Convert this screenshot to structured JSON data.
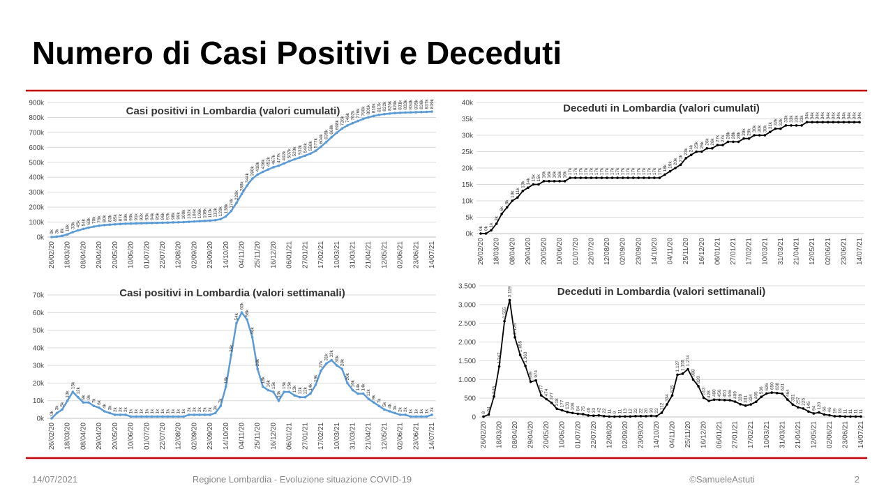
{
  "title": "Numero di Casi Positivi e Deceduti",
  "footer": {
    "date": "14/07/2021",
    "source": "Regione Lombardia - Evoluzione situazione COVID-19",
    "author": "©SamueleAstuti",
    "page": "2"
  },
  "chart_data": [
    {
      "type": "line",
      "title": "Casi positivi in Lombardia (valori cumulati)",
      "color": "#5b9bd5",
      "grid": true,
      "categories": [
        "26/02/20",
        null,
        null,
        "18/03/20",
        null,
        null,
        "08/04/20",
        null,
        null,
        "29/04/20",
        null,
        null,
        "20/05/20",
        null,
        null,
        "10/06/20",
        null,
        null,
        "01/07/20",
        null,
        null,
        "22/07/20",
        null,
        null,
        "12/08/20",
        null,
        null,
        "02/09/20",
        null,
        null,
        "23/09/20",
        null,
        null,
        "14/10/20",
        null,
        null,
        "04/11/20",
        null,
        null,
        "25/11/20",
        null,
        null,
        "16/12/20",
        null,
        null,
        "06/01/21",
        null,
        null,
        "27/01/21",
        null,
        null,
        "17/02/21",
        null,
        null,
        "10/03/21",
        null,
        null,
        "31/03/21",
        null,
        null,
        "21/04/21",
        null,
        null,
        "12/05/21",
        null,
        null,
        "02/06/21",
        null,
        null,
        "23/06/21",
        null,
        null,
        "14/07/21"
      ],
      "values": [
        0,
        3000,
        8000,
        18000,
        33000,
        45000,
        54000,
        63000,
        70000,
        76000,
        80000,
        83000,
        85000,
        87000,
        89000,
        90000,
        91000,
        92000,
        93000,
        94000,
        95000,
        96000,
        97000,
        98000,
        99000,
        100000,
        102000,
        104000,
        106000,
        108000,
        110000,
        113000,
        120000,
        138000,
        174000,
        228000,
        288000,
        344000,
        390000,
        418000,
        436000,
        452000,
        467000,
        477000,
        492000,
        507000,
        520000,
        532000,
        544000,
        558000,
        577000,
        604000,
        635000,
        668000,
        698000,
        726000,
        746000,
        762000,
        776000,
        790000,
        801000,
        810000,
        817000,
        822000,
        826000,
        829000,
        831000,
        833000,
        834000,
        835000,
        836000,
        837000,
        839000
      ],
      "value_labels": [
        "0k",
        "3k",
        "8k",
        "18k",
        "33k",
        "45k",
        "54k",
        "63k",
        "70k",
        "76k",
        "80k",
        "83k",
        "85k",
        "87k",
        "89k",
        "90k",
        "91k",
        "92k",
        "93k",
        "94k",
        "95k",
        "96k",
        "97k",
        "98k",
        "99k",
        "100k",
        "102k",
        "104k",
        "106k",
        "108k",
        "110k",
        "113k",
        "120k",
        "138k",
        "174k",
        "228k",
        "288k",
        "344k",
        "390k",
        "418k",
        "436k",
        "452k",
        "467k",
        "477k",
        "492k",
        "507k",
        "520k",
        "532k",
        "544k",
        "558k",
        "577k",
        "604k",
        "635k",
        "668k",
        "698k",
        "726k",
        "746k",
        "762k",
        "776k",
        "790k",
        "801k",
        "810k",
        "817k",
        "822k",
        "826k",
        "829k",
        "831k",
        "833k",
        "834k",
        "835k",
        "836k",
        "837k",
        "839k"
      ],
      "ylim": [
        0,
        900000
      ],
      "yticks": [
        {
          "value": 0,
          "label": "0k"
        },
        {
          "value": 100000,
          "label": "100k"
        },
        {
          "value": 200000,
          "label": "200k"
        },
        {
          "value": 300000,
          "label": "300k"
        },
        {
          "value": 400000,
          "label": "400k"
        },
        {
          "value": 500000,
          "label": "500k"
        },
        {
          "value": 600000,
          "label": "600k"
        },
        {
          "value": 700000,
          "label": "700k"
        },
        {
          "value": 800000,
          "label": "800k"
        },
        {
          "value": 900000,
          "label": "900k"
        }
      ]
    },
    {
      "type": "line",
      "title": "Deceduti in Lombardia (valori cumulati)",
      "color": "#000000",
      "grid": true,
      "categories": [
        "26/02/20",
        null,
        null,
        "18/03/20",
        null,
        null,
        "08/04/20",
        null,
        null,
        "29/04/20",
        null,
        null,
        "20/05/20",
        null,
        null,
        "10/06/20",
        null,
        null,
        "01/07/20",
        null,
        null,
        "22/07/20",
        null,
        null,
        "12/08/20",
        null,
        null,
        "02/09/20",
        null,
        null,
        "23/09/20",
        null,
        null,
        "14/10/20",
        null,
        null,
        "04/11/20",
        null,
        null,
        "25/11/20",
        null,
        null,
        "16/12/20",
        null,
        null,
        "06/01/21",
        null,
        null,
        "27/01/21",
        null,
        null,
        "17/02/21",
        null,
        null,
        "10/03/21",
        null,
        null,
        "31/03/21",
        null,
        null,
        "21/04/21",
        null,
        null,
        "12/05/21",
        null,
        null,
        "02/06/21",
        null,
        null,
        "23/06/21",
        null,
        null,
        "14/07/21"
      ],
      "values": [
        0,
        0,
        1000,
        3000,
        6000,
        8000,
        10000,
        11000,
        13000,
        14000,
        15000,
        15000,
        16000,
        16000,
        16000,
        16000,
        16000,
        17000,
        17000,
        17000,
        17000,
        17000,
        17000,
        17000,
        17000,
        17000,
        17000,
        17000,
        17000,
        17000,
        17000,
        17000,
        17000,
        17000,
        17000,
        18000,
        19000,
        20000,
        21000,
        23000,
        24000,
        25000,
        25000,
        26000,
        26000,
        27000,
        27000,
        28000,
        28000,
        28000,
        29000,
        29000,
        30000,
        30000,
        30000,
        31000,
        32000,
        32000,
        33000,
        33000,
        33000,
        33000,
        34000,
        34000,
        34000,
        34000,
        34000,
        34000,
        34000,
        34000,
        34000,
        34000,
        34000
      ],
      "value_labels": [
        "0k",
        "0k",
        "1k",
        "3k",
        "6k",
        "8k",
        "10k",
        "11k",
        "13k",
        "14k",
        "15k",
        "15k",
        "16k",
        "16k",
        "16k",
        "16k",
        "16k",
        "17k",
        "17k",
        "17k",
        "17k",
        "17k",
        "17k",
        "17k",
        "17k",
        "17k",
        "17k",
        "17k",
        "17k",
        "17k",
        "17k",
        "17k",
        "17k",
        "17k",
        "17k",
        "18k",
        "19k",
        "20k",
        "21k",
        "23k",
        "24k",
        "25k",
        "25k",
        "26k",
        "26k",
        "27k",
        "27k",
        "28k",
        "28k",
        "28k",
        "29k",
        "29k",
        "30k",
        "30k",
        "30k",
        "31k",
        "32k",
        "32k",
        "33k",
        "33k",
        "33k",
        "33k",
        "34k",
        "34k",
        "34k",
        "34k",
        "34k",
        "34k",
        "34k",
        "34k",
        "34k",
        "34k",
        "34k"
      ],
      "ylim": [
        0,
        40000
      ],
      "yticks": [
        {
          "value": 0,
          "label": "0k"
        },
        {
          "value": 5000,
          "label": "5k"
        },
        {
          "value": 10000,
          "label": "10k"
        },
        {
          "value": 15000,
          "label": "15k"
        },
        {
          "value": 20000,
          "label": "20k"
        },
        {
          "value": 25000,
          "label": "25k"
        },
        {
          "value": 30000,
          "label": "30k"
        },
        {
          "value": 35000,
          "label": "35k"
        },
        {
          "value": 40000,
          "label": "40k"
        }
      ]
    },
    {
      "type": "line",
      "title": "Casi positivi in Lombardia (valori settimanali)",
      "color": "#5b9bd5",
      "grid": true,
      "categories": [
        "26/02/20",
        null,
        null,
        "18/03/20",
        null,
        null,
        "08/04/20",
        null,
        null,
        "29/04/20",
        null,
        null,
        "20/05/20",
        null,
        null,
        "10/06/20",
        null,
        null,
        "01/07/20",
        null,
        null,
        "22/07/20",
        null,
        null,
        "12/08/20",
        null,
        null,
        "02/09/20",
        null,
        null,
        "23/09/20",
        null,
        null,
        "14/10/20",
        null,
        null,
        "04/11/20",
        null,
        null,
        "25/11/20",
        null,
        null,
        "16/12/20",
        null,
        null,
        "06/01/21",
        null,
        null,
        "27/01/21",
        null,
        null,
        "17/02/21",
        null,
        null,
        "10/03/21",
        null,
        null,
        "31/03/21",
        null,
        null,
        "21/04/21",
        null,
        null,
        "12/05/21",
        null,
        null,
        "02/06/21",
        null,
        null,
        "23/06/21",
        null,
        null,
        "14/07/21"
      ],
      "values": [
        0,
        3000,
        5000,
        10000,
        15000,
        12000,
        9000,
        9000,
        7000,
        6000,
        4000,
        3000,
        2000,
        2000,
        2000,
        1000,
        1000,
        1000,
        1000,
        1000,
        1000,
        1000,
        1000,
        1000,
        1000,
        1000,
        2000,
        2000,
        2000,
        2000,
        2000,
        3000,
        7000,
        18000,
        36000,
        54000,
        60000,
        56000,
        46000,
        28000,
        18000,
        16000,
        15000,
        10000,
        15000,
        15000,
        13000,
        12000,
        12000,
        14000,
        19000,
        27000,
        31000,
        33000,
        30000,
        28000,
        20000,
        16000,
        14000,
        14000,
        11000,
        9000,
        7000,
        5000,
        4000,
        3000,
        2000,
        2000,
        1000,
        1000,
        1000,
        1000,
        2000
      ],
      "value_labels": [
        "0k",
        "3k",
        "5k",
        "10k",
        "15k",
        "12k",
        "9k",
        "9k",
        "7k",
        "6k",
        "4k",
        "3k",
        "2k",
        "2k",
        "2k",
        "1k",
        "1k",
        "1k",
        "1k",
        "1k",
        "1k",
        "1k",
        "1k",
        "1k",
        "1k",
        "1k",
        "2k",
        "2k",
        "2k",
        "2k",
        "2k",
        "3k",
        "7k",
        "18k",
        "36k",
        "54k",
        "60k",
        "56k",
        "46k",
        "28k",
        "18k",
        "16k",
        "15k",
        "10k",
        "15k",
        "15k",
        "13k",
        "12k",
        "12k",
        "14k",
        "19k",
        "27k",
        "31k",
        "33k",
        "30k",
        "28k",
        "20k",
        "16k",
        "14k",
        "14k",
        "11k",
        "9k",
        "7k",
        "5k",
        "4k",
        "3k",
        "2k",
        "2k",
        "1k",
        "1k",
        "1k",
        "1k",
        "2k"
      ],
      "ylim": [
        0,
        70000
      ],
      "yticks": [
        {
          "value": 0,
          "label": "0k"
        },
        {
          "value": 10000,
          "label": "10k"
        },
        {
          "value": 20000,
          "label": "20k"
        },
        {
          "value": 30000,
          "label": "30k"
        },
        {
          "value": 40000,
          "label": "40k"
        },
        {
          "value": 50000,
          "label": "50k"
        },
        {
          "value": 60000,
          "label": "60k"
        },
        {
          "value": 70000,
          "label": "70k"
        }
      ]
    },
    {
      "type": "line",
      "title": "Deceduti in Lombardia (valori settimanali)",
      "color": "#000000",
      "grid": true,
      "categories": [
        "26/02/20",
        null,
        null,
        "18/03/20",
        null,
        null,
        "08/04/20",
        null,
        null,
        "29/04/20",
        null,
        null,
        "20/05/20",
        null,
        null,
        "10/06/20",
        null,
        null,
        "01/07/20",
        null,
        null,
        "22/07/20",
        null,
        null,
        "12/08/20",
        null,
        null,
        "02/09/20",
        null,
        null,
        "23/09/20",
        null,
        null,
        "14/10/20",
        null,
        null,
        "04/11/20",
        null,
        null,
        "25/11/20",
        null,
        null,
        "16/12/20",
        null,
        null,
        "06/01/21",
        null,
        null,
        "27/01/21",
        null,
        null,
        "17/02/21",
        null,
        null,
        "10/03/21",
        null,
        null,
        "31/03/21",
        null,
        null,
        "21/04/21",
        null,
        null,
        "12/05/21",
        null,
        null,
        "02/06/21",
        null,
        null,
        "23/06/21",
        null,
        null,
        "14/07/21"
      ],
      "values": [
        8,
        64,
        545,
        1347,
        2555,
        3119,
        2125,
        1655,
        1363,
        939,
        974,
        577,
        474,
        377,
        218,
        177,
        131,
        106,
        84,
        75,
        40,
        33,
        42,
        22,
        11,
        9,
        11,
        13,
        12,
        22,
        22,
        20,
        30,
        23,
        112,
        334,
        575,
        1127,
        1155,
        1274,
        998,
        820,
        513,
        428,
        460,
        456,
        451,
        446,
        409,
        339,
        301,
        334,
        405,
        536,
        626,
        650,
        638,
        621,
        464,
        331,
        257,
        225,
        145,
        94,
        120,
        66,
        46,
        19,
        19,
        11,
        11,
        11,
        11
      ],
      "value_labels": [
        "8",
        "64",
        "545",
        "1.347",
        "2.555",
        "3.119",
        "2.125",
        "1.655",
        "1.363",
        "939",
        "974",
        "577",
        "474",
        "377",
        "218",
        "177",
        "131",
        "106",
        "84",
        "75",
        "40",
        "33",
        "42",
        "22",
        "11",
        "9",
        "11",
        "13",
        "12",
        "22",
        "22",
        "20",
        "30",
        "23",
        "112",
        "334",
        "575",
        "1.127",
        "1.155",
        "1.274",
        "998",
        "820",
        "513",
        "428",
        "460",
        "456",
        "451",
        "446",
        "409",
        "339",
        "301",
        "334",
        "405",
        "536",
        "626",
        "650",
        "638",
        "621",
        "464",
        "331",
        "257",
        "225",
        "145",
        "94",
        "120",
        "66",
        "46",
        "19",
        "19",
        "11",
        "11",
        "11",
        "11"
      ],
      "ylim": [
        0,
        3500
      ],
      "yticks": [
        0,
        500,
        {
          "value": 1000,
          "label": "1.000"
        },
        {
          "value": 1500,
          "label": "1.500"
        },
        {
          "value": 2000,
          "label": "2.000"
        },
        {
          "value": 2500,
          "label": "2.500"
        },
        {
          "value": 3000,
          "label": "3.000"
        },
        {
          "value": 3500,
          "label": "3.500"
        }
      ]
    }
  ]
}
